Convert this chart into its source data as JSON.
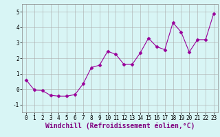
{
  "x": [
    0,
    1,
    2,
    3,
    4,
    5,
    6,
    7,
    8,
    9,
    10,
    11,
    12,
    13,
    14,
    15,
    16,
    17,
    18,
    19,
    20,
    21,
    22,
    23
  ],
  "y": [
    0.6,
    -0.05,
    -0.1,
    -0.4,
    -0.45,
    -0.45,
    -0.35,
    0.35,
    1.4,
    1.55,
    2.45,
    2.25,
    1.6,
    1.6,
    2.35,
    3.3,
    2.75,
    2.55,
    4.3,
    3.7,
    2.4,
    3.2,
    3.2,
    4.9
  ],
  "line_color": "#990099",
  "marker": "D",
  "marker_size": 2.5,
  "xlim": [
    -0.5,
    23.5
  ],
  "ylim": [
    -1.5,
    5.5
  ],
  "yticks": [
    -1,
    0,
    1,
    2,
    3,
    4,
    5
  ],
  "xticks": [
    0,
    1,
    2,
    3,
    4,
    5,
    6,
    7,
    8,
    9,
    10,
    11,
    12,
    13,
    14,
    15,
    16,
    17,
    18,
    19,
    20,
    21,
    22,
    23
  ],
  "xlabel": "Windchill (Refroidissement éolien,°C)",
  "bg_color": "#d8f5f5",
  "grid_color": "#aaaaaa",
  "tick_label_fontsize": 5.5,
  "xlabel_fontsize": 7
}
